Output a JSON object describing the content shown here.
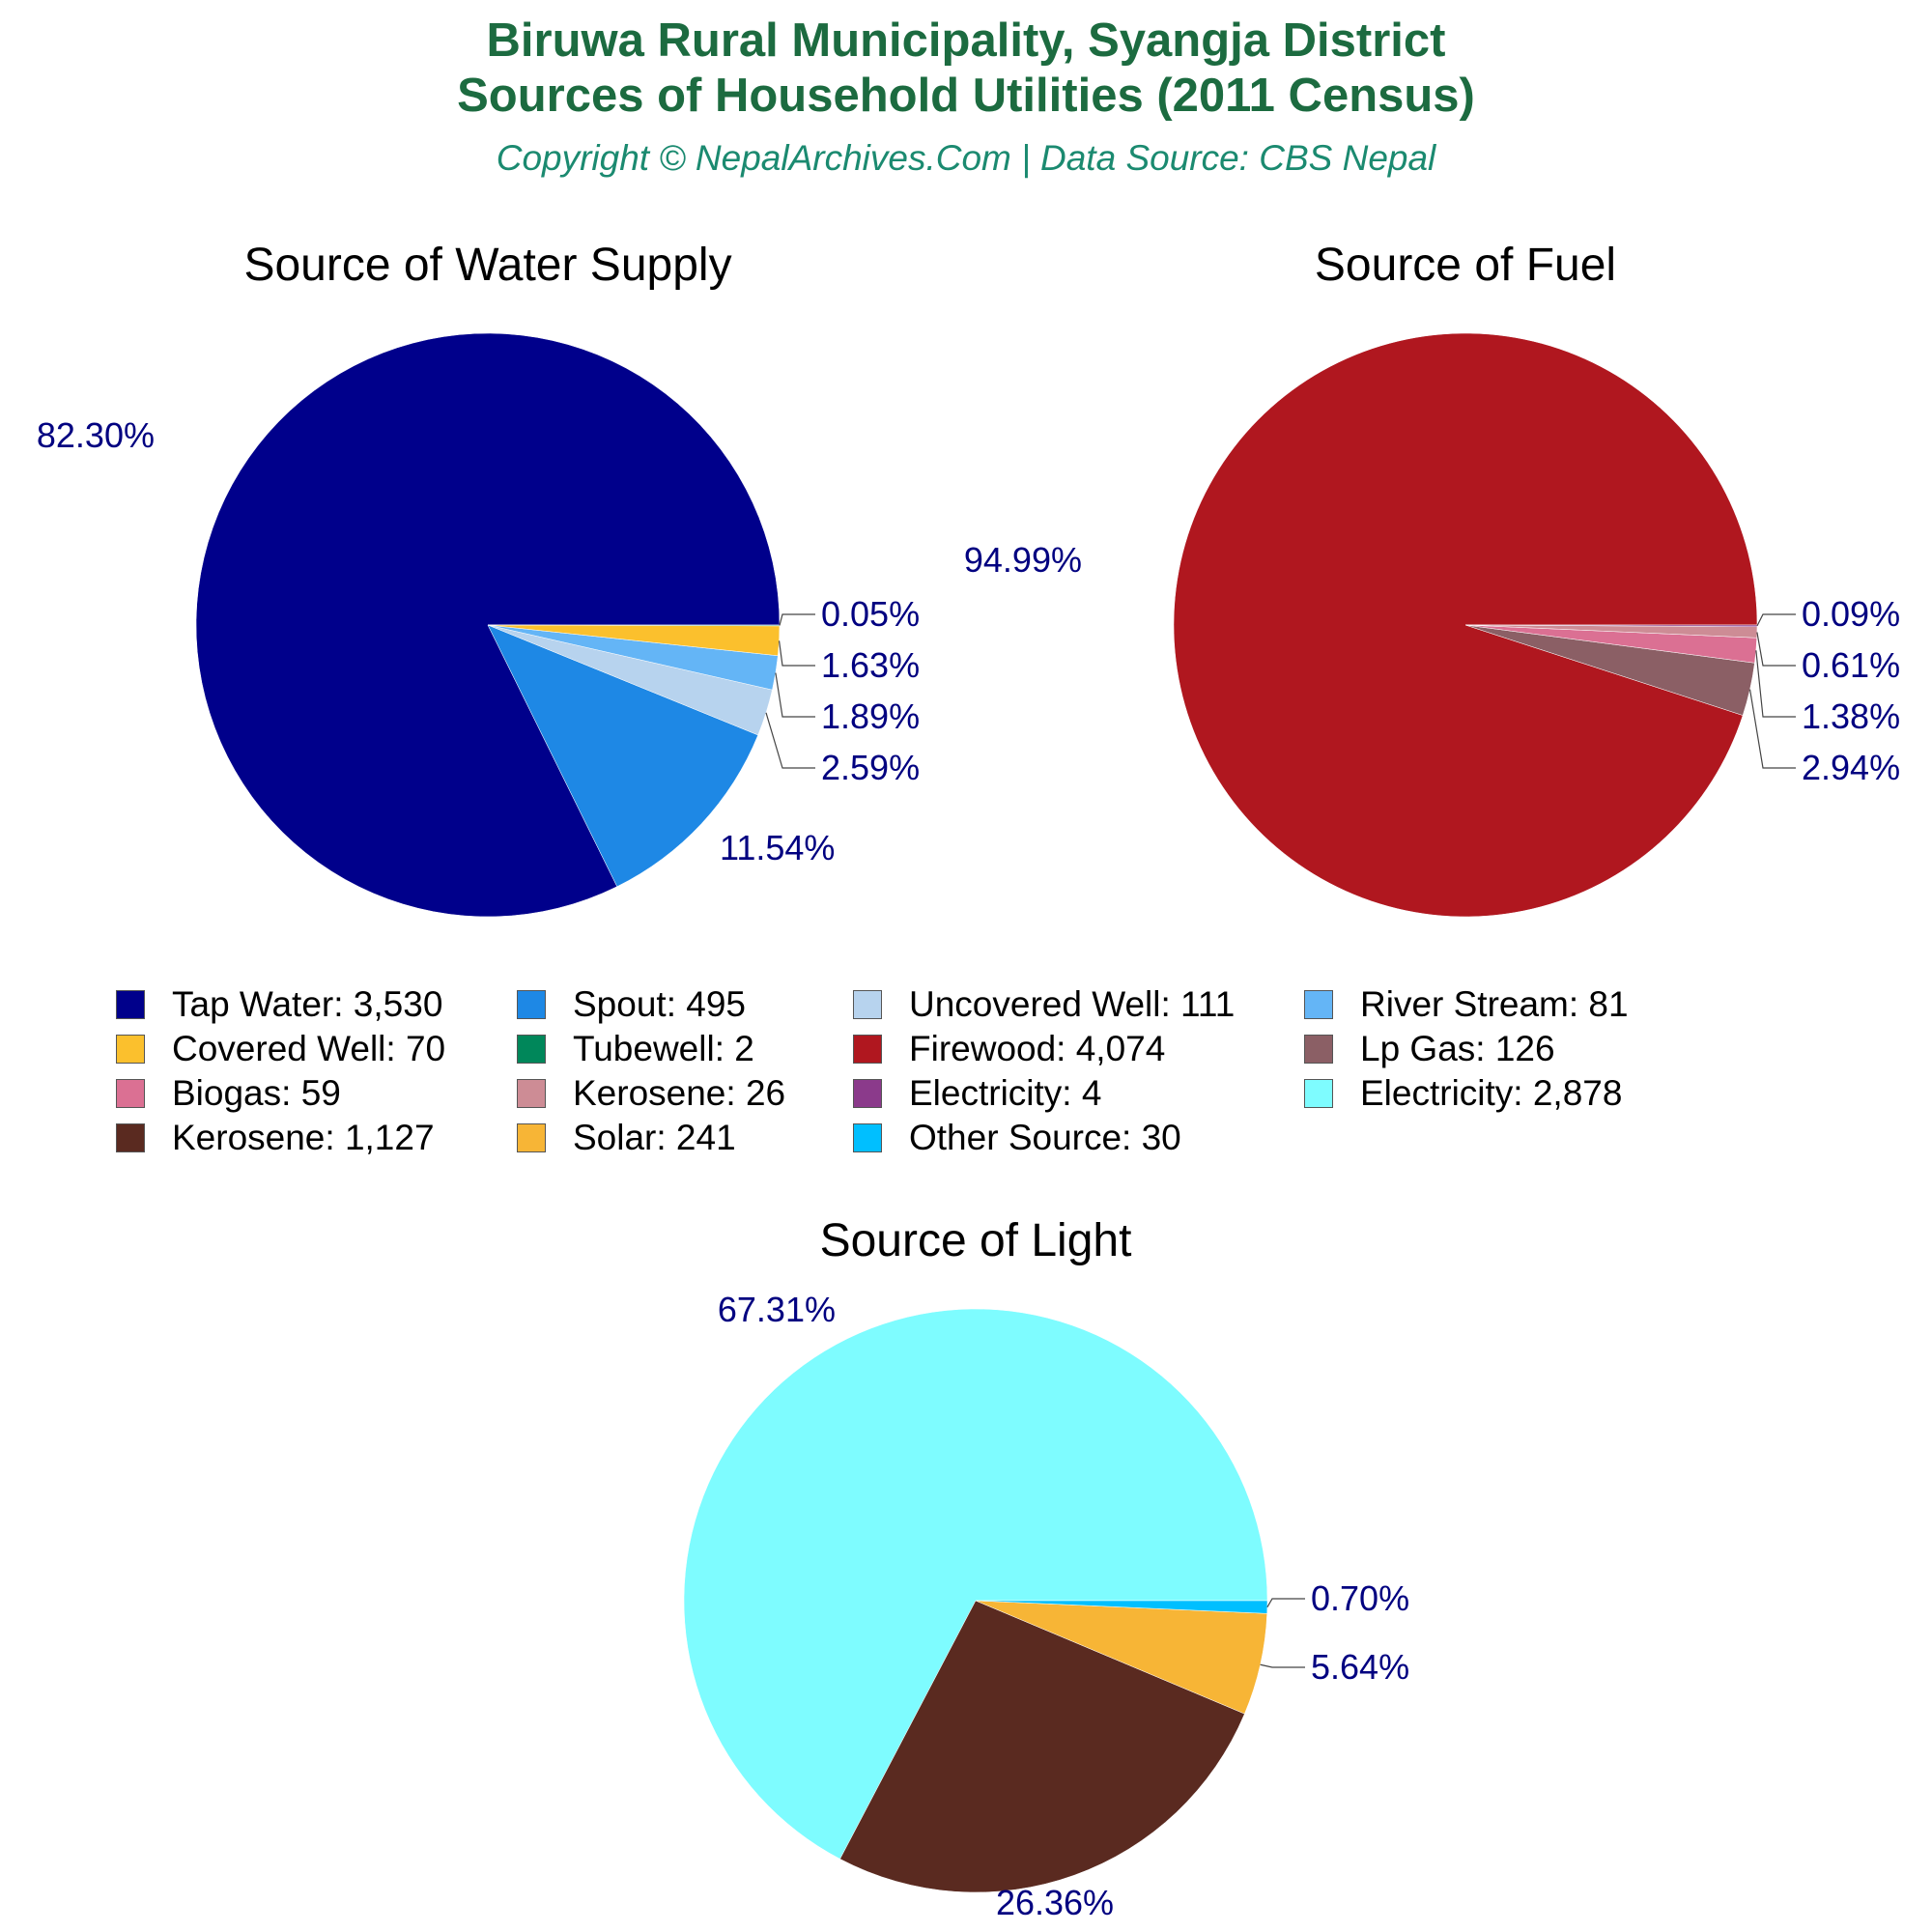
{
  "title_line1": "Biruwa Rural Municipality, Syangja District",
  "title_line2": "Sources of Household Utilities (2011 Census)",
  "subtitle": "Copyright © NepalArchives.Com | Data Source: CBS Nepal",
  "colors": {
    "title": "#1c6b40",
    "subtitle": "#1b8a70",
    "label": "#000080",
    "leader": "#444444"
  },
  "legend": [
    {
      "label": "Tap Water: 3,530",
      "color": "#00008b"
    },
    {
      "label": "Spout: 495",
      "color": "#1e88e5"
    },
    {
      "label": "Uncovered Well: 111",
      "color": "#b7d3ee"
    },
    {
      "label": "River Stream: 81",
      "color": "#64b5f6"
    },
    {
      "label": "Covered Well: 70",
      "color": "#fbc02d"
    },
    {
      "label": "Tubewell: 2",
      "color": "#00875a"
    },
    {
      "label": "Firewood: 4,074",
      "color": "#b0171f"
    },
    {
      "label": "Lp Gas: 126",
      "color": "#8b5f65"
    },
    {
      "label": "Biogas: 59",
      "color": "#db7093"
    },
    {
      "label": "Kerosene: 26",
      "color": "#cd8c95"
    },
    {
      "label": "Electricity: 4",
      "color": "#8b3a8b"
    },
    {
      "label": "Electricity: 2,878",
      "color": "#7efcff"
    },
    {
      "label": "Kerosene: 1,127",
      "color": "#5a2a20"
    },
    {
      "label": "Solar: 241",
      "color": "#f7b536"
    },
    {
      "label": "Other Source: 30",
      "color": "#00bfff"
    }
  ],
  "chart_data": [
    {
      "type": "pie",
      "title": "Source of Water Supply",
      "slices": [
        {
          "name": "Tap Water",
          "value": 3530,
          "percent_label": "82.30%",
          "color": "#00008b"
        },
        {
          "name": "Spout",
          "value": 495,
          "percent_label": "11.54%",
          "color": "#1e88e5"
        },
        {
          "name": "Uncovered Well",
          "value": 111,
          "percent_label": "2.59%",
          "color": "#b7d3ee"
        },
        {
          "name": "River Stream",
          "value": 81,
          "percent_label": "1.89%",
          "color": "#64b5f6"
        },
        {
          "name": "Covered Well",
          "value": 70,
          "percent_label": "1.63%",
          "color": "#fbc02d"
        },
        {
          "name": "Tubewell",
          "value": 2,
          "percent_label": "0.05%",
          "color": "#00875a"
        }
      ]
    },
    {
      "type": "pie",
      "title": "Source of Fuel",
      "slices": [
        {
          "name": "Firewood",
          "value": 4074,
          "percent_label": "94.99%",
          "color": "#b0171f"
        },
        {
          "name": "Lp Gas",
          "value": 126,
          "percent_label": "2.94%",
          "color": "#8b5f65"
        },
        {
          "name": "Biogas",
          "value": 59,
          "percent_label": "1.38%",
          "color": "#db7093"
        },
        {
          "name": "Kerosene",
          "value": 26,
          "percent_label": "0.61%",
          "color": "#cd8c95"
        },
        {
          "name": "Electricity",
          "value": 4,
          "percent_label": "0.09%",
          "color": "#8b3a8b"
        }
      ]
    },
    {
      "type": "pie",
      "title": "Source of Light",
      "slices": [
        {
          "name": "Electricity",
          "value": 2878,
          "percent_label": "67.31%",
          "color": "#7efcff"
        },
        {
          "name": "Kerosene",
          "value": 1127,
          "percent_label": "26.36%",
          "color": "#5a2a20"
        },
        {
          "name": "Solar",
          "value": 241,
          "percent_label": "5.64%",
          "color": "#f7b536"
        },
        {
          "name": "Other Source",
          "value": 30,
          "percent_label": "0.70%",
          "color": "#00bfff"
        }
      ]
    }
  ]
}
